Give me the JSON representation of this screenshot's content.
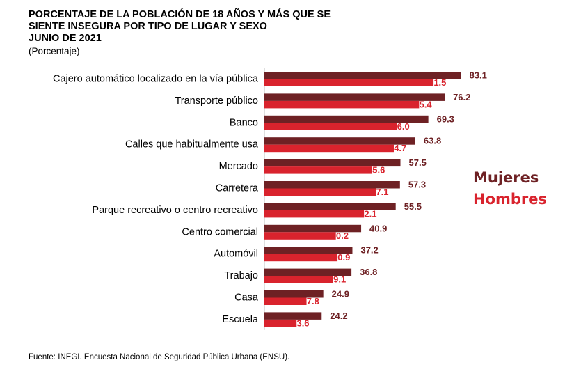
{
  "title_lines": [
    "PORCENTAJE DE LA POBLACIÓN DE 18 AÑOS Y MÁS QUE SE",
    "SIENTE INSEGURA POR TIPO DE LUGAR Y SEXO",
    "JUNIO DE 2021"
  ],
  "subtitle": "(Porcentaje)",
  "legend": {
    "mujeres": "Mujeres",
    "hombres": "Hombres"
  },
  "source": "Fuente: INEGI. Encuesta Nacional de Seguridad Pública Urbana (ENSU).",
  "colors": {
    "mujeres": "#6e2124",
    "hombres": "#d9232d"
  },
  "chart_data": {
    "type": "bar",
    "orientation": "horizontal",
    "categories": [
      "Cajero automático localizado en la vía pública",
      "Transporte público",
      "Banco",
      "Calles que habitualmente usa",
      "Mercado",
      "Carretera",
      "Parque recreativo o centro recreativo",
      "Centro comercial",
      "Automóvil",
      "Trabajo",
      "Casa",
      "Escuela"
    ],
    "series": [
      {
        "name": "Mujeres",
        "values": [
          83.1,
          76.2,
          69.3,
          63.8,
          57.5,
          57.3,
          55.5,
          40.9,
          37.2,
          36.8,
          24.9,
          24.2
        ]
      },
      {
        "name": "Hombres",
        "values": [
          71.5,
          65.4,
          56.0,
          54.7,
          45.6,
          47.1,
          42.1,
          30.2,
          30.9,
          29.1,
          17.8,
          13.6
        ]
      }
    ],
    "xlim": [
      0,
      100
    ],
    "legend_position": "right",
    "grid": false
  }
}
